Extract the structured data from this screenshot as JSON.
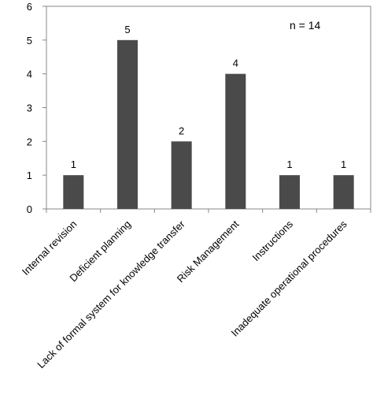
{
  "chart_data": {
    "type": "bar",
    "categories": [
      "Internal revision",
      "Deficient planning",
      "Lack of formal system for knowledge transfer",
      "Risk Management",
      "Instructions",
      "Inadequate operational procedures"
    ],
    "values": [
      1,
      5,
      2,
      4,
      1,
      1
    ],
    "data_labels": [
      "1",
      "5",
      "2",
      "4",
      "1",
      "1"
    ],
    "ylim": [
      0,
      6
    ],
    "yticks": [
      "0",
      "1",
      "2",
      "3",
      "4",
      "5",
      "6"
    ],
    "annotation": "n = 14",
    "bar_color": "#4a4a4a",
    "axis_color": "#888888",
    "grid": false,
    "legend": "none"
  }
}
